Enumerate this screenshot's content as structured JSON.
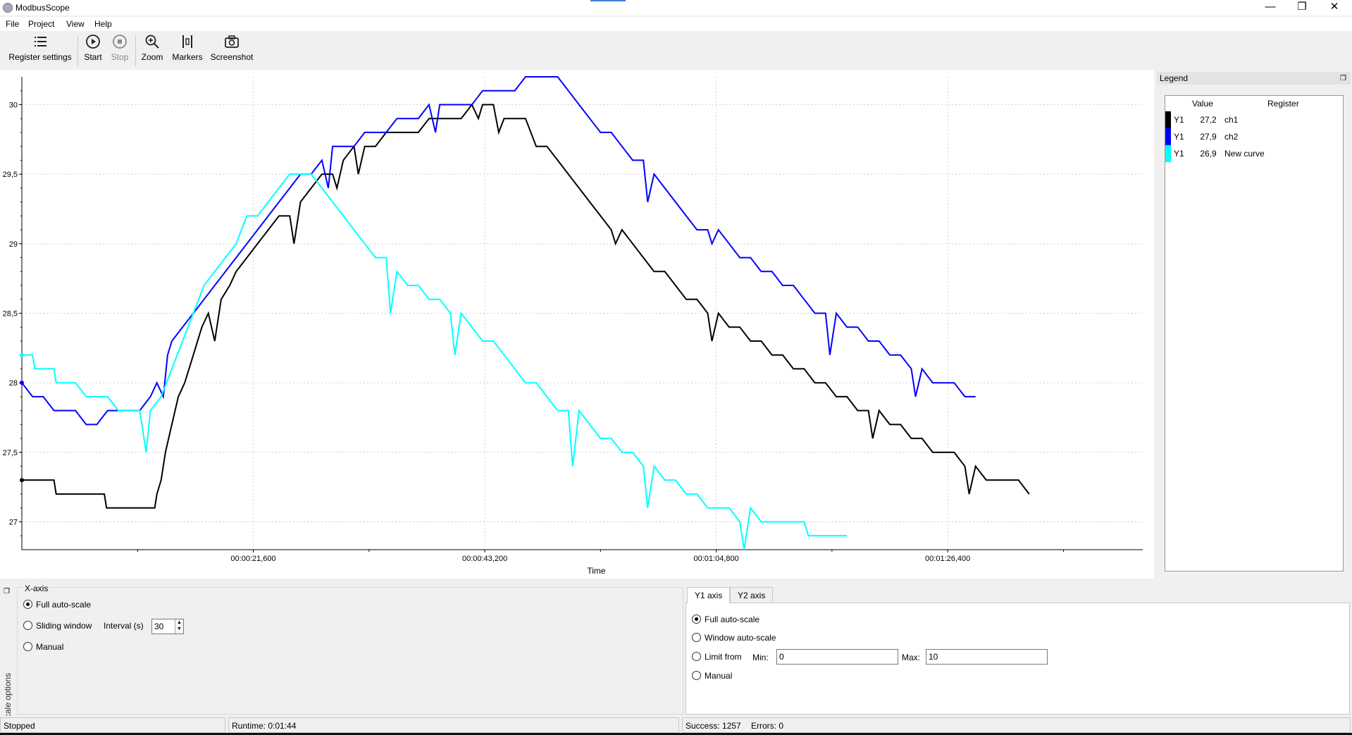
{
  "window": {
    "title": "ModbusScope",
    "controls": [
      "—",
      "❐",
      "✕"
    ]
  },
  "menu": [
    "File",
    "Project",
    "View",
    "Help"
  ],
  "toolbar": {
    "register_settings": "Register settings",
    "start": "Start",
    "stop": "Stop",
    "zoom": "Zoom",
    "markers": "Markers",
    "screenshot": "Screenshot"
  },
  "legend": {
    "title": "Legend",
    "headers": {
      "value": "Value",
      "register": "Register"
    },
    "rows": [
      {
        "axis": "Y1",
        "value": "27,2",
        "register": "ch1",
        "color": "#000000"
      },
      {
        "axis": "Y1",
        "value": "27,9",
        "register": "ch2",
        "color": "#0000ff"
      },
      {
        "axis": "Y1",
        "value": "26,9",
        "register": "New curve",
        "color": "#00ffff"
      }
    ]
  },
  "scale": {
    "dock_label": "Scale options",
    "x_axis": {
      "title": "X-axis",
      "full_auto": "Full auto-scale",
      "sliding": "Sliding window",
      "interval_label": "Interval (s)",
      "interval_value": "30",
      "manual": "Manual"
    },
    "y_tabs": [
      "Y1 axis",
      "Y2 axis"
    ],
    "y_axis": {
      "full_auto": "Full auto-scale",
      "window_auto": "Window auto-scale",
      "limit_from": "Limit from",
      "min_label": "Min:",
      "min_value": "0",
      "max_label": "Max:",
      "max_value": "10",
      "manual": "Manual"
    }
  },
  "status": {
    "state": "Stopped",
    "runtime": "Runtime: 0:01:44",
    "success": "Success: 1257",
    "errors": "Errors: 0"
  },
  "chart_data": {
    "type": "line",
    "xlabel": "Time",
    "x_ticks": [
      "00:00:21,600",
      "00:00:43,200",
      "00:01:04,800",
      "00:01:26,400"
    ],
    "x_tick_seconds": [
      21.6,
      43.2,
      64.8,
      86.4
    ],
    "xlim": [
      0,
      104.6
    ],
    "ylim": [
      26.8,
      30.2
    ],
    "y_ticks": [
      27,
      27.5,
      28,
      28.5,
      29,
      29.5,
      30
    ],
    "y_tick_labels": [
      "27",
      "27,5",
      "28",
      "28,5",
      "29",
      "29,5",
      "30"
    ],
    "grid": true,
    "series": [
      {
        "name": "ch1",
        "color": "#000000",
        "points": [
          [
            0,
            27.3
          ],
          [
            3,
            27.3
          ],
          [
            3.2,
            27.2
          ],
          [
            7.7,
            27.2
          ],
          [
            7.9,
            27.1
          ],
          [
            12.4,
            27.1
          ],
          [
            12.6,
            27.2
          ],
          [
            13,
            27.3
          ],
          [
            13.4,
            27.5
          ],
          [
            14,
            27.7
          ],
          [
            14.6,
            27.9
          ],
          [
            15.2,
            28.0
          ],
          [
            16,
            28.2
          ],
          [
            16.8,
            28.4
          ],
          [
            17.4,
            28.5
          ],
          [
            18,
            28.3
          ],
          [
            18.6,
            28.6
          ],
          [
            19.4,
            28.7
          ],
          [
            20,
            28.8
          ],
          [
            21,
            28.9
          ],
          [
            22,
            29.0
          ],
          [
            23,
            29.1
          ],
          [
            24,
            29.2
          ],
          [
            25,
            29.2
          ],
          [
            25.4,
            29.0
          ],
          [
            26,
            29.3
          ],
          [
            27,
            29.4
          ],
          [
            28,
            29.5
          ],
          [
            29,
            29.5
          ],
          [
            29.4,
            29.4
          ],
          [
            30,
            29.6
          ],
          [
            31,
            29.7
          ],
          [
            31.4,
            29.5
          ],
          [
            32,
            29.7
          ],
          [
            33,
            29.7
          ],
          [
            34,
            29.8
          ],
          [
            35,
            29.8
          ],
          [
            36,
            29.8
          ],
          [
            37,
            29.8
          ],
          [
            38,
            29.9
          ],
          [
            39,
            29.9
          ],
          [
            40,
            29.9
          ],
          [
            41,
            29.9
          ],
          [
            42,
            30.0
          ],
          [
            42.6,
            29.9
          ],
          [
            43,
            30.0
          ],
          [
            44,
            30.0
          ],
          [
            44.5,
            29.8
          ],
          [
            45,
            29.9
          ],
          [
            46,
            29.9
          ],
          [
            47,
            29.9
          ],
          [
            48,
            29.7
          ],
          [
            49,
            29.7
          ],
          [
            50,
            29.6
          ],
          [
            51,
            29.5
          ],
          [
            52,
            29.4
          ],
          [
            53,
            29.3
          ],
          [
            54,
            29.2
          ],
          [
            55,
            29.1
          ],
          [
            55.4,
            29.0
          ],
          [
            56,
            29.1
          ],
          [
            57,
            29.0
          ],
          [
            58,
            28.9
          ],
          [
            59,
            28.8
          ],
          [
            60,
            28.8
          ],
          [
            61,
            28.7
          ],
          [
            62,
            28.6
          ],
          [
            63,
            28.6
          ],
          [
            64,
            28.5
          ],
          [
            64.4,
            28.3
          ],
          [
            65,
            28.5
          ],
          [
            66,
            28.4
          ],
          [
            67,
            28.4
          ],
          [
            68,
            28.3
          ],
          [
            69,
            28.3
          ],
          [
            70,
            28.2
          ],
          [
            71,
            28.2
          ],
          [
            72,
            28.1
          ],
          [
            73,
            28.1
          ],
          [
            74,
            28.0
          ],
          [
            75,
            28.0
          ],
          [
            76,
            27.9
          ],
          [
            77,
            27.9
          ],
          [
            78,
            27.8
          ],
          [
            79,
            27.8
          ],
          [
            79.4,
            27.6
          ],
          [
            80,
            27.8
          ],
          [
            81,
            27.7
          ],
          [
            82,
            27.7
          ],
          [
            83,
            27.6
          ],
          [
            84,
            27.6
          ],
          [
            85,
            27.5
          ],
          [
            86,
            27.5
          ],
          [
            87,
            27.5
          ],
          [
            88,
            27.4
          ],
          [
            88.4,
            27.2
          ],
          [
            89,
            27.4
          ],
          [
            90,
            27.3
          ],
          [
            91,
            27.3
          ],
          [
            92,
            27.3
          ],
          [
            93,
            27.3
          ],
          [
            94,
            27.2
          ]
        ]
      },
      {
        "name": "ch2",
        "color": "#0000ff",
        "points": [
          [
            0,
            28.0
          ],
          [
            1,
            27.9
          ],
          [
            2,
            27.9
          ],
          [
            3,
            27.8
          ],
          [
            4,
            27.8
          ],
          [
            5,
            27.8
          ],
          [
            6,
            27.7
          ],
          [
            7,
            27.7
          ],
          [
            8,
            27.8
          ],
          [
            9,
            27.8
          ],
          [
            10,
            27.8
          ],
          [
            11,
            27.8
          ],
          [
            12,
            27.9
          ],
          [
            12.6,
            28.0
          ],
          [
            13.2,
            27.9
          ],
          [
            13.6,
            28.2
          ],
          [
            14,
            28.3
          ],
          [
            15,
            28.4
          ],
          [
            16,
            28.5
          ],
          [
            17,
            28.6
          ],
          [
            18,
            28.7
          ],
          [
            19,
            28.8
          ],
          [
            20,
            28.9
          ],
          [
            21,
            29.0
          ],
          [
            22,
            29.1
          ],
          [
            23,
            29.2
          ],
          [
            24,
            29.3
          ],
          [
            25,
            29.4
          ],
          [
            26,
            29.5
          ],
          [
            27,
            29.5
          ],
          [
            28,
            29.6
          ],
          [
            28.6,
            29.4
          ],
          [
            29,
            29.7
          ],
          [
            30,
            29.7
          ],
          [
            31,
            29.7
          ],
          [
            32,
            29.8
          ],
          [
            33,
            29.8
          ],
          [
            34,
            29.8
          ],
          [
            35,
            29.9
          ],
          [
            36,
            29.9
          ],
          [
            37,
            29.9
          ],
          [
            38,
            30.0
          ],
          [
            38.6,
            29.8
          ],
          [
            39,
            30.0
          ],
          [
            40,
            30.0
          ],
          [
            41,
            30.0
          ],
          [
            42,
            30.0
          ],
          [
            43,
            30.1
          ],
          [
            44,
            30.1
          ],
          [
            45,
            30.1
          ],
          [
            46,
            30.1
          ],
          [
            47,
            30.2
          ],
          [
            48,
            30.2
          ],
          [
            49,
            30.2
          ],
          [
            50,
            30.2
          ],
          [
            51,
            30.1
          ],
          [
            52,
            30.0
          ],
          [
            53,
            29.9
          ],
          [
            54,
            29.8
          ],
          [
            55,
            29.8
          ],
          [
            56,
            29.7
          ],
          [
            57,
            29.6
          ],
          [
            58,
            29.6
          ],
          [
            58.4,
            29.3
          ],
          [
            59,
            29.5
          ],
          [
            60,
            29.4
          ],
          [
            61,
            29.3
          ],
          [
            62,
            29.2
          ],
          [
            63,
            29.1
          ],
          [
            64,
            29.1
          ],
          [
            64.4,
            29.0
          ],
          [
            65,
            29.1
          ],
          [
            66,
            29.0
          ],
          [
            67,
            28.9
          ],
          [
            68,
            28.9
          ],
          [
            69,
            28.8
          ],
          [
            70,
            28.8
          ],
          [
            71,
            28.7
          ],
          [
            72,
            28.7
          ],
          [
            73,
            28.6
          ],
          [
            74,
            28.5
          ],
          [
            75,
            28.5
          ],
          [
            75.4,
            28.2
          ],
          [
            76,
            28.5
          ],
          [
            77,
            28.4
          ],
          [
            78,
            28.4
          ],
          [
            79,
            28.3
          ],
          [
            80,
            28.3
          ],
          [
            81,
            28.2
          ],
          [
            82,
            28.2
          ],
          [
            83,
            28.1
          ],
          [
            83.4,
            27.9
          ],
          [
            84,
            28.1
          ],
          [
            85,
            28.0
          ],
          [
            86,
            28.0
          ],
          [
            87,
            28.0
          ],
          [
            88,
            27.9
          ],
          [
            89,
            27.9
          ]
        ]
      },
      {
        "name": "New curve",
        "color": "#00ffff",
        "points": [
          [
            0,
            28.2
          ],
          [
            1,
            28.2
          ],
          [
            1.2,
            28.1
          ],
          [
            3,
            28.1
          ],
          [
            3.2,
            28.0
          ],
          [
            5,
            28.0
          ],
          [
            6,
            27.9
          ],
          [
            7,
            27.9
          ],
          [
            8,
            27.9
          ],
          [
            9,
            27.8
          ],
          [
            10,
            27.8
          ],
          [
            11,
            27.8
          ],
          [
            11.6,
            27.5
          ],
          [
            12,
            27.8
          ],
          [
            13,
            27.9
          ],
          [
            14,
            28.1
          ],
          [
            15,
            28.3
          ],
          [
            16,
            28.5
          ],
          [
            17,
            28.7
          ],
          [
            18,
            28.8
          ],
          [
            19,
            28.9
          ],
          [
            20,
            29.0
          ],
          [
            21,
            29.2
          ],
          [
            22,
            29.2
          ],
          [
            23,
            29.3
          ],
          [
            24,
            29.4
          ],
          [
            25,
            29.5
          ],
          [
            26,
            29.5
          ],
          [
            27,
            29.5
          ],
          [
            28,
            29.4
          ],
          [
            29,
            29.3
          ],
          [
            30,
            29.2
          ],
          [
            31,
            29.1
          ],
          [
            32,
            29.0
          ],
          [
            33,
            28.9
          ],
          [
            34,
            28.9
          ],
          [
            34.4,
            28.5
          ],
          [
            35,
            28.8
          ],
          [
            36,
            28.7
          ],
          [
            37,
            28.7
          ],
          [
            38,
            28.6
          ],
          [
            39,
            28.6
          ],
          [
            40,
            28.5
          ],
          [
            40.4,
            28.2
          ],
          [
            41,
            28.5
          ],
          [
            42,
            28.4
          ],
          [
            43,
            28.3
          ],
          [
            44,
            28.3
          ],
          [
            45,
            28.2
          ],
          [
            46,
            28.1
          ],
          [
            47,
            28.0
          ],
          [
            48,
            28.0
          ],
          [
            49,
            27.9
          ],
          [
            50,
            27.8
          ],
          [
            51,
            27.8
          ],
          [
            51.4,
            27.4
          ],
          [
            52,
            27.8
          ],
          [
            53,
            27.7
          ],
          [
            54,
            27.6
          ],
          [
            55,
            27.6
          ],
          [
            56,
            27.5
          ],
          [
            57,
            27.5
          ],
          [
            58,
            27.4
          ],
          [
            58.4,
            27.1
          ],
          [
            59,
            27.4
          ],
          [
            60,
            27.3
          ],
          [
            61,
            27.3
          ],
          [
            62,
            27.2
          ],
          [
            63,
            27.2
          ],
          [
            64,
            27.1
          ],
          [
            65,
            27.1
          ],
          [
            66,
            27.1
          ],
          [
            67,
            27.0
          ],
          [
            67.4,
            26.8
          ],
          [
            68,
            27.1
          ],
          [
            69,
            27.0
          ],
          [
            70,
            27.0
          ],
          [
            71,
            27.0
          ],
          [
            72,
            27.0
          ],
          [
            73,
            27.0
          ],
          [
            73.4,
            26.9
          ],
          [
            74,
            26.9
          ],
          [
            75,
            26.9
          ],
          [
            76,
            26.9
          ],
          [
            77,
            26.9
          ]
        ]
      }
    ]
  }
}
